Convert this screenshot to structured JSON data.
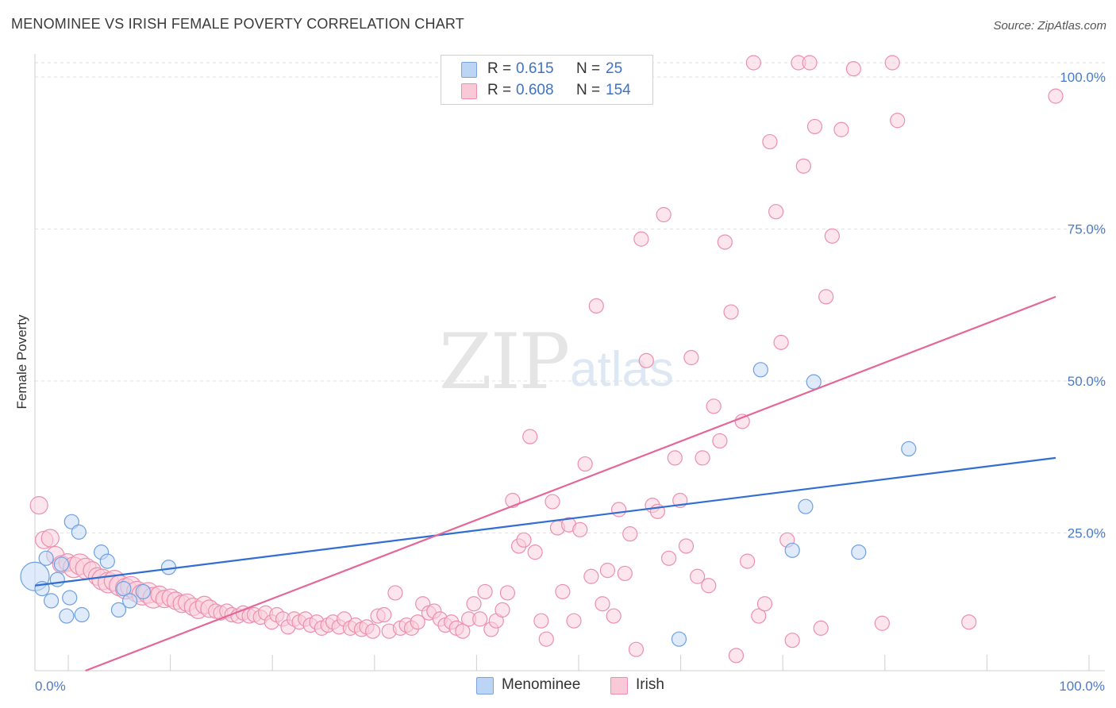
{
  "header": {
    "title": "MENOMINEE VS IRISH FEMALE POVERTY CORRELATION CHART",
    "source": "Source: ZipAtlas.com"
  },
  "watermark": {
    "zip": "ZIP",
    "atlas": "atlas"
  },
  "legend": {
    "rows": [
      {
        "r_label": "R =",
        "r_value": "0.615",
        "n_label": "N =",
        "n_value": "25",
        "color": "#bcd5f5",
        "border": "#7aa3dc"
      },
      {
        "r_label": "R =",
        "r_value": "0.608",
        "n_label": "N =",
        "n_value": "154",
        "color": "#f9c9d8",
        "border": "#ec8fae"
      }
    ]
  },
  "bottom_legend": [
    {
      "label": "Menominee",
      "color": "#bcd5f5",
      "border": "#7aa3dc"
    },
    {
      "label": "Irish",
      "color": "#f9c9d8",
      "border": "#ec8fae"
    }
  ],
  "chart_data": {
    "type": "scatter",
    "title": "MENOMINEE VS IRISH FEMALE POVERTY CORRELATION CHART",
    "xlabel": "",
    "ylabel": "Female Poverty",
    "xlim": [
      0,
      100
    ],
    "ylim": [
      0,
      100
    ],
    "x_tick_labels": [
      "0.0%",
      "100.0%"
    ],
    "y_tick_labels": [
      "25.0%",
      "50.0%",
      "75.0%",
      "100.0%"
    ],
    "y_ticks": [
      25,
      50,
      75,
      100
    ],
    "grid": true,
    "legend_position": "top-center",
    "series": [
      {
        "name": "Menominee",
        "color": "#6ea0e0",
        "fill": "#c5daf6",
        "trend": {
          "x": [
            0,
            100
          ],
          "y": [
            14.0,
            35.0
          ],
          "color": "#2f6fd0"
        },
        "points": [
          [
            0.0,
            15.5,
            18
          ],
          [
            0.7,
            13.5,
            9
          ],
          [
            1.1,
            18.5,
            9
          ],
          [
            1.6,
            11.5,
            9
          ],
          [
            2.2,
            15.0,
            9
          ],
          [
            2.6,
            17.5,
            9
          ],
          [
            3.1,
            9.0,
            9
          ],
          [
            3.4,
            12.0,
            9
          ],
          [
            3.6,
            24.5,
            9
          ],
          [
            4.3,
            22.8,
            9
          ],
          [
            4.6,
            9.2,
            9
          ],
          [
            6.5,
            19.5,
            9
          ],
          [
            7.1,
            18.0,
            9
          ],
          [
            8.2,
            10.0,
            9
          ],
          [
            8.7,
            13.5,
            9
          ],
          [
            9.3,
            11.5,
            9
          ],
          [
            10.6,
            13.0,
            9
          ],
          [
            13.1,
            17.0,
            9
          ],
          [
            63.1,
            5.2,
            9
          ],
          [
            71.1,
            49.5,
            9
          ],
          [
            74.2,
            19.8,
            9
          ],
          [
            75.5,
            27.0,
            9
          ],
          [
            76.3,
            47.5,
            9
          ],
          [
            80.7,
            19.5,
            9
          ],
          [
            85.6,
            36.5,
            9
          ]
        ]
      },
      {
        "name": "Irish",
        "color": "#ec8fae",
        "fill": "#fad0dd",
        "trend": {
          "x": [
            0,
            100
          ],
          "y": [
            -3.2,
            61.5
          ],
          "color": "#e4679a"
        },
        "points": [
          [
            0.4,
            27.2,
            11
          ],
          [
            0.9,
            21.5,
            11
          ],
          [
            1.5,
            21.8,
            11
          ],
          [
            2.0,
            19.0,
            11
          ],
          [
            2.6,
            17.5,
            11
          ],
          [
            3.2,
            17.8,
            11
          ],
          [
            3.8,
            17.0,
            13
          ],
          [
            4.4,
            17.5,
            13
          ],
          [
            5.0,
            16.8,
            13
          ],
          [
            5.6,
            16.5,
            11
          ],
          [
            6.1,
            15.5,
            11
          ],
          [
            6.6,
            15.0,
            13
          ],
          [
            7.2,
            14.5,
            13
          ],
          [
            7.8,
            14.8,
            13
          ],
          [
            8.3,
            14.0,
            13
          ],
          [
            8.9,
            13.5,
            13
          ],
          [
            9.4,
            13.8,
            13
          ],
          [
            10.0,
            13.0,
            13
          ],
          [
            10.5,
            12.5,
            13
          ],
          [
            11.1,
            12.8,
            13
          ],
          [
            11.6,
            12.0,
            13
          ],
          [
            12.2,
            12.5,
            11
          ],
          [
            12.7,
            11.8,
            11
          ],
          [
            13.3,
            12.0,
            11
          ],
          [
            13.8,
            11.5,
            11
          ],
          [
            14.4,
            11.0,
            11
          ],
          [
            14.9,
            11.2,
            11
          ],
          [
            15.5,
            10.5,
            11
          ],
          [
            16.0,
            10.0,
            11
          ],
          [
            16.6,
            10.8,
            11
          ],
          [
            17.1,
            10.2,
            11
          ],
          [
            17.7,
            9.8,
            9
          ],
          [
            18.2,
            9.5,
            9
          ],
          [
            18.8,
            9.8,
            9
          ],
          [
            19.3,
            9.2,
            9
          ],
          [
            19.9,
            9.0,
            9
          ],
          [
            20.4,
            9.5,
            9
          ],
          [
            21.0,
            9.0,
            9
          ],
          [
            21.5,
            9.2,
            9
          ],
          [
            22.1,
            8.8,
            9
          ],
          [
            22.6,
            9.5,
            9
          ],
          [
            23.2,
            8.0,
            9
          ],
          [
            23.7,
            9.2,
            9
          ],
          [
            24.3,
            8.5,
            9
          ],
          [
            24.8,
            7.2,
            9
          ],
          [
            25.4,
            8.5,
            9
          ],
          [
            25.9,
            8.0,
            9
          ],
          [
            26.5,
            8.5,
            9
          ],
          [
            27.0,
            7.5,
            9
          ],
          [
            27.6,
            8.0,
            9
          ],
          [
            28.1,
            7.0,
            9
          ],
          [
            28.7,
            7.5,
            9
          ],
          [
            29.2,
            8.0,
            9
          ],
          [
            29.8,
            7.2,
            9
          ],
          [
            30.3,
            8.5,
            9
          ],
          [
            30.9,
            7.0,
            9
          ],
          [
            31.4,
            7.5,
            9
          ],
          [
            32.0,
            6.8,
            9
          ],
          [
            32.5,
            7.2,
            9
          ],
          [
            33.1,
            6.5,
            9
          ],
          [
            33.6,
            9.0,
            9
          ],
          [
            34.2,
            9.2,
            9
          ],
          [
            34.7,
            6.5,
            9
          ],
          [
            35.3,
            12.8,
            9
          ],
          [
            35.8,
            7.0,
            9
          ],
          [
            36.4,
            7.5,
            9
          ],
          [
            36.9,
            7.0,
            9
          ],
          [
            37.5,
            8.0,
            9
          ],
          [
            38.0,
            11.0,
            9
          ],
          [
            38.6,
            9.5,
            9
          ],
          [
            39.1,
            9.8,
            9
          ],
          [
            39.7,
            8.5,
            9
          ],
          [
            40.2,
            7.5,
            9
          ],
          [
            40.8,
            8.0,
            9
          ],
          [
            41.3,
            7.0,
            9
          ],
          [
            41.9,
            6.5,
            9
          ],
          [
            42.5,
            8.5,
            9
          ],
          [
            43.0,
            11.0,
            9
          ],
          [
            43.6,
            8.5,
            9
          ],
          [
            44.1,
            13.0,
            9
          ],
          [
            44.7,
            6.8,
            9
          ],
          [
            45.2,
            8.2,
            9
          ],
          [
            45.8,
            10.0,
            9
          ],
          [
            46.3,
            12.8,
            9
          ],
          [
            46.8,
            28.0,
            9
          ],
          [
            47.4,
            20.5,
            9
          ],
          [
            47.9,
            21.5,
            9
          ],
          [
            48.5,
            38.5,
            9
          ],
          [
            49.0,
            19.5,
            9
          ],
          [
            49.6,
            8.2,
            9
          ],
          [
            50.1,
            5.2,
            9
          ],
          [
            50.7,
            27.8,
            9
          ],
          [
            51.2,
            23.5,
            9
          ],
          [
            51.7,
            13.0,
            9
          ],
          [
            52.3,
            24.0,
            9
          ],
          [
            52.8,
            8.2,
            9
          ],
          [
            53.4,
            23.2,
            9
          ],
          [
            53.9,
            34.0,
            9
          ],
          [
            54.5,
            15.5,
            9
          ],
          [
            55.0,
            60.0,
            9
          ],
          [
            55.6,
            11.0,
            9
          ],
          [
            56.1,
            16.5,
            9
          ],
          [
            56.7,
            9.0,
            9
          ],
          [
            57.2,
            26.5,
            9
          ],
          [
            57.8,
            16.0,
            9
          ],
          [
            58.3,
            22.5,
            9
          ],
          [
            58.9,
            3.5,
            9
          ],
          [
            59.4,
            71.0,
            9
          ],
          [
            59.9,
            51.0,
            9
          ],
          [
            60.5,
            27.2,
            9
          ],
          [
            61.0,
            26.2,
            9
          ],
          [
            61.6,
            75.0,
            9
          ],
          [
            62.1,
            18.5,
            9
          ],
          [
            62.7,
            35.0,
            9
          ],
          [
            63.2,
            28.0,
            9
          ],
          [
            63.8,
            20.5,
            9
          ],
          [
            64.3,
            51.5,
            9
          ],
          [
            64.9,
            15.5,
            9
          ],
          [
            65.4,
            35.0,
            9
          ],
          [
            66.0,
            14.0,
            9
          ],
          [
            66.5,
            43.5,
            9
          ],
          [
            67.1,
            37.8,
            9
          ],
          [
            67.6,
            70.5,
            9
          ],
          [
            68.2,
            59.0,
            9
          ],
          [
            68.7,
            2.5,
            9
          ],
          [
            69.3,
            41.0,
            9
          ],
          [
            69.8,
            18.0,
            9
          ],
          [
            70.4,
            100.0,
            9
          ],
          [
            70.9,
            9.0,
            9
          ],
          [
            71.5,
            11.0,
            9
          ],
          [
            72.0,
            87.0,
            9
          ],
          [
            72.6,
            75.5,
            9
          ],
          [
            73.1,
            54.0,
            9
          ],
          [
            73.7,
            21.5,
            9
          ],
          [
            74.2,
            5.0,
            9
          ],
          [
            74.8,
            100.0,
            9
          ],
          [
            75.3,
            83.0,
            9
          ],
          [
            75.9,
            100.0,
            9
          ],
          [
            76.4,
            89.5,
            9
          ],
          [
            77.0,
            7.0,
            9
          ],
          [
            77.5,
            61.5,
            9
          ],
          [
            78.1,
            71.5,
            9
          ],
          [
            79.0,
            89.0,
            9
          ],
          [
            80.2,
            99.0,
            9
          ],
          [
            83.0,
            7.8,
            9
          ],
          [
            84.0,
            100.0,
            9
          ],
          [
            84.5,
            90.5,
            9
          ],
          [
            100.0,
            94.5,
            9
          ],
          [
            91.5,
            8.0,
            9
          ]
        ]
      }
    ]
  }
}
